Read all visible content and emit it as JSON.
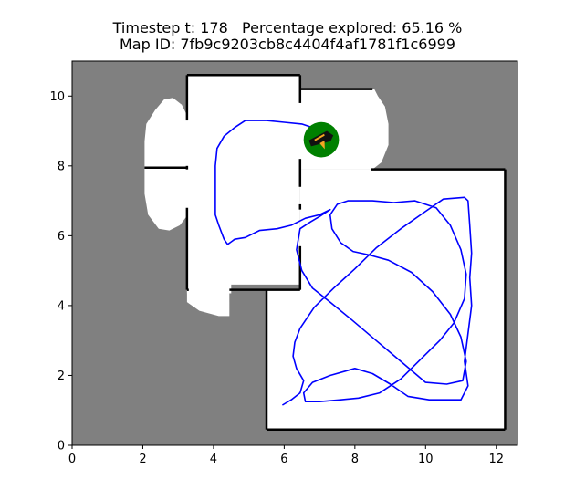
{
  "chart_data": {
    "type": "line",
    "title": {
      "line1": "Timestep t: 178   Percentage explored: 65.16 %",
      "line2": "Map ID: 7fb9c9203cb8c4404f4af1781f1c6999"
    },
    "xlim": [
      0,
      12.6
    ],
    "ylim": [
      0,
      11
    ],
    "x_ticks": [
      0,
      2,
      4,
      6,
      8,
      10,
      12
    ],
    "y_ticks": [
      0,
      2,
      4,
      6,
      8,
      10
    ],
    "colors": {
      "unexplored": "#808080",
      "free": "#ffffff",
      "wall": "#000000",
      "trajectory": "#0000ff",
      "agent": "#008000",
      "heading": "#f5a623"
    },
    "free_space": [
      {
        "name": "room-top-center",
        "points": [
          [
            3.25,
            10.6
          ],
          [
            6.45,
            10.6
          ],
          [
            6.45,
            10.2
          ],
          [
            8.5,
            10.2
          ],
          [
            8.5,
            7.9
          ],
          [
            6.45,
            7.9
          ],
          [
            6.45,
            4.6
          ],
          [
            4.5,
            4.6
          ],
          [
            4.5,
            4.35
          ],
          [
            3.25,
            4.35
          ]
        ]
      },
      {
        "name": "room-top-right",
        "points": [
          [
            6.45,
            10.2
          ],
          [
            8.55,
            10.2
          ],
          [
            8.65,
            10.0
          ],
          [
            8.85,
            9.7
          ],
          [
            8.95,
            9.2
          ],
          [
            8.95,
            8.6
          ],
          [
            8.75,
            8.1
          ],
          [
            8.5,
            7.9
          ],
          [
            6.45,
            7.9
          ]
        ]
      },
      {
        "name": "room-left-bulge",
        "points": [
          [
            3.35,
            9.25
          ],
          [
            3.1,
            9.75
          ],
          [
            2.85,
            9.95
          ],
          [
            2.6,
            9.9
          ],
          [
            2.35,
            9.6
          ],
          [
            2.1,
            9.2
          ],
          [
            2.05,
            8.7
          ],
          [
            2.05,
            7.2
          ],
          [
            2.15,
            6.6
          ],
          [
            2.45,
            6.2
          ],
          [
            2.75,
            6.15
          ],
          [
            3.05,
            6.3
          ],
          [
            3.35,
            6.7
          ]
        ]
      },
      {
        "name": "room-bottom-left-blob",
        "points": [
          [
            3.25,
            4.5
          ],
          [
            4.45,
            4.5
          ],
          [
            4.45,
            3.7
          ],
          [
            4.15,
            3.7
          ],
          [
            3.6,
            3.85
          ],
          [
            3.25,
            4.1
          ]
        ]
      },
      {
        "name": "room-large-right",
        "points": [
          [
            6.45,
            7.9
          ],
          [
            12.25,
            7.9
          ],
          [
            12.25,
            0.45
          ],
          [
            5.5,
            0.45
          ],
          [
            5.5,
            4.45
          ],
          [
            6.45,
            4.45
          ]
        ]
      }
    ],
    "walls": [
      [
        [
          3.25,
          10.6
        ],
        [
          6.45,
          10.6
        ]
      ],
      [
        [
          3.25,
          10.6
        ],
        [
          3.25,
          9.3
        ]
      ],
      [
        [
          3.25,
          8.0
        ],
        [
          3.25,
          7.9
        ]
      ],
      [
        [
          3.25,
          6.8
        ],
        [
          3.25,
          4.45
        ]
      ],
      [
        [
          3.25,
          4.45
        ],
        [
          3.3,
          4.45
        ]
      ],
      [
        [
          2.05,
          7.95
        ],
        [
          3.25,
          7.95
        ]
      ],
      [
        [
          6.45,
          10.6
        ],
        [
          6.45,
          9.8
        ]
      ],
      [
        [
          6.45,
          10.2
        ],
        [
          8.5,
          10.2
        ]
      ],
      [
        [
          6.45,
          8.2
        ],
        [
          6.45,
          7.4
        ]
      ],
      [
        [
          6.45,
          6.9
        ],
        [
          6.45,
          6.75
        ]
      ],
      [
        [
          6.45,
          5.7
        ],
        [
          6.45,
          4.45
        ]
      ],
      [
        [
          4.45,
          4.45
        ],
        [
          6.45,
          4.45
        ]
      ],
      [
        [
          5.5,
          4.45
        ],
        [
          5.5,
          0.45
        ]
      ],
      [
        [
          5.5,
          0.45
        ],
        [
          12.25,
          0.45
        ]
      ],
      [
        [
          12.25,
          0.45
        ],
        [
          12.25,
          7.9
        ]
      ],
      [
        [
          8.45,
          7.9
        ],
        [
          12.25,
          7.9
        ]
      ]
    ],
    "trajectory": [
      [
        5.95,
        1.15
      ],
      [
        6.2,
        1.3
      ],
      [
        6.45,
        1.5
      ],
      [
        6.55,
        1.85
      ],
      [
        6.35,
        2.2
      ],
      [
        6.25,
        2.55
      ],
      [
        6.3,
        2.95
      ],
      [
        6.45,
        3.35
      ],
      [
        6.85,
        3.95
      ],
      [
        7.4,
        4.5
      ],
      [
        8.0,
        5.05
      ],
      [
        8.6,
        5.65
      ],
      [
        9.3,
        6.2
      ],
      [
        10.0,
        6.7
      ],
      [
        10.5,
        7.05
      ],
      [
        11.1,
        7.1
      ],
      [
        11.2,
        7.0
      ],
      [
        11.25,
        6.3
      ],
      [
        11.3,
        5.5
      ],
      [
        11.25,
        4.8
      ],
      [
        11.3,
        4.0
      ],
      [
        11.2,
        3.2
      ],
      [
        11.1,
        2.4
      ],
      [
        11.2,
        1.7
      ],
      [
        11.0,
        1.3
      ],
      [
        10.7,
        1.3
      ],
      [
        10.1,
        1.3
      ],
      [
        9.5,
        1.4
      ],
      [
        9.0,
        1.75
      ],
      [
        8.5,
        2.05
      ],
      [
        8.0,
        2.2
      ],
      [
        7.3,
        2.0
      ],
      [
        6.8,
        1.8
      ],
      [
        6.55,
        1.5
      ],
      [
        6.6,
        1.25
      ],
      [
        7.0,
        1.25
      ],
      [
        7.6,
        1.3
      ],
      [
        8.1,
        1.35
      ],
      [
        8.7,
        1.5
      ],
      [
        9.3,
        1.9
      ],
      [
        9.9,
        2.5
      ],
      [
        10.4,
        3.0
      ],
      [
        10.8,
        3.5
      ],
      [
        11.1,
        4.2
      ],
      [
        11.15,
        4.9
      ],
      [
        11.0,
        5.6
      ],
      [
        10.7,
        6.3
      ],
      [
        10.3,
        6.8
      ],
      [
        9.7,
        7.0
      ],
      [
        9.1,
        6.95
      ],
      [
        8.5,
        7.0
      ],
      [
        7.8,
        7.0
      ],
      [
        7.5,
        6.9
      ],
      [
        7.3,
        6.6
      ],
      [
        7.35,
        6.2
      ],
      [
        7.6,
        5.8
      ],
      [
        7.95,
        5.55
      ],
      [
        8.4,
        5.45
      ],
      [
        8.95,
        5.3
      ],
      [
        9.6,
        4.95
      ],
      [
        10.2,
        4.4
      ],
      [
        10.7,
        3.75
      ],
      [
        11.0,
        3.1
      ],
      [
        11.15,
        2.4
      ],
      [
        11.05,
        1.85
      ],
      [
        10.6,
        1.75
      ],
      [
        10.0,
        1.8
      ],
      [
        9.3,
        2.4
      ],
      [
        8.6,
        3.0
      ],
      [
        7.9,
        3.6
      ],
      [
        7.3,
        4.1
      ],
      [
        6.8,
        4.5
      ],
      [
        6.5,
        5.0
      ],
      [
        6.35,
        5.6
      ],
      [
        6.45,
        6.2
      ],
      [
        6.75,
        6.4
      ],
      [
        7.0,
        6.55
      ],
      [
        7.3,
        6.75
      ],
      [
        7.0,
        6.6
      ],
      [
        6.6,
        6.5
      ],
      [
        6.2,
        6.3
      ],
      [
        5.8,
        6.2
      ],
      [
        5.3,
        6.15
      ],
      [
        4.9,
        5.95
      ],
      [
        4.6,
        5.9
      ],
      [
        4.4,
        5.75
      ],
      [
        4.3,
        5.9
      ],
      [
        4.15,
        6.3
      ],
      [
        4.05,
        6.6
      ],
      [
        4.05,
        7.2
      ],
      [
        4.05,
        7.7
      ],
      [
        4.05,
        8.0
      ],
      [
        4.1,
        8.5
      ],
      [
        4.3,
        8.85
      ],
      [
        4.6,
        9.1
      ],
      [
        4.9,
        9.3
      ],
      [
        5.5,
        9.3
      ],
      [
        6.0,
        9.25
      ],
      [
        6.5,
        9.2
      ],
      [
        6.8,
        9.1
      ],
      [
        7.0,
        8.95
      ]
    ],
    "agent": {
      "x": 7.05,
      "y": 8.75,
      "radius": 0.5,
      "heading_deg": 20
    }
  }
}
